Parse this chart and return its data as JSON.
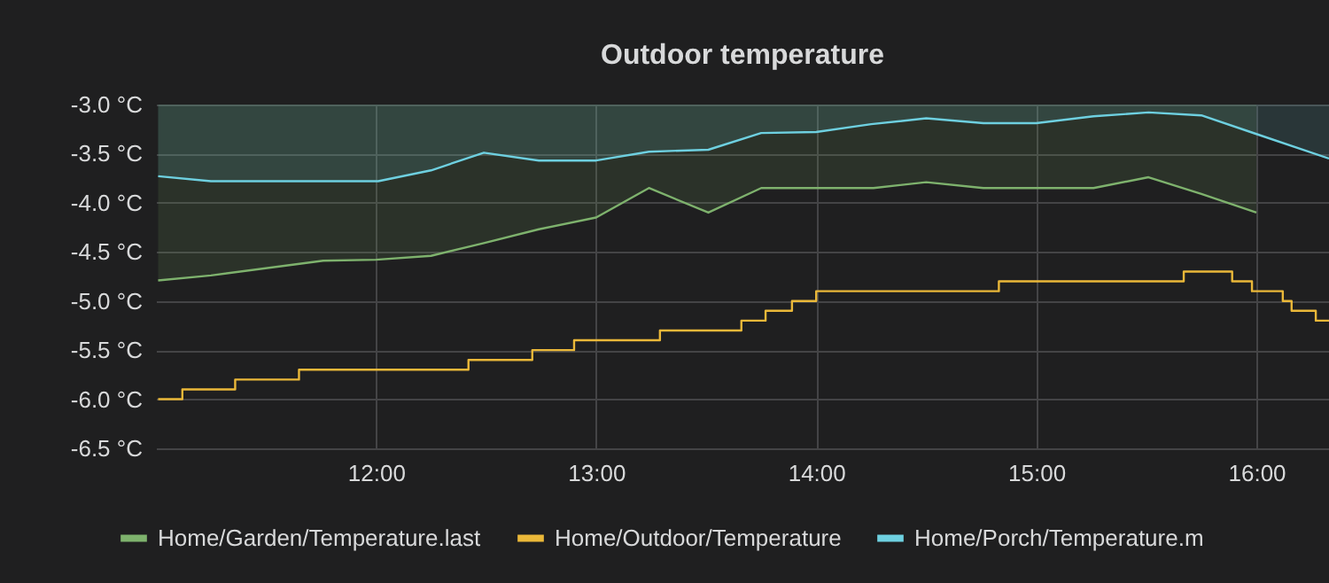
{
  "chart_data": {
    "type": "area",
    "title": "Outdoor temperature",
    "xlim": [
      11.0,
      16.33
    ],
    "xticks": [
      {
        "value": 12,
        "label": "12:00"
      },
      {
        "value": 13,
        "label": "13:00"
      },
      {
        "value": 14,
        "label": "14:00"
      },
      {
        "value": 15,
        "label": "15:00"
      },
      {
        "value": 16,
        "label": "16:00"
      }
    ],
    "ylim": [
      -6.5,
      -3.0
    ],
    "yticks": [
      {
        "value": -6.5,
        "label": "-6.5 °C"
      },
      {
        "value": -6.0,
        "label": "-6.0 °C"
      },
      {
        "value": -5.5,
        "label": "-5.5 °C"
      },
      {
        "value": -5.0,
        "label": "-5.0 °C"
      },
      {
        "value": -4.5,
        "label": "-4.5 °C"
      },
      {
        "value": -4.0,
        "label": "-4.0 °C"
      },
      {
        "value": -3.5,
        "label": "-3.5 °C"
      },
      {
        "value": -3.0,
        "label": "-3.0 °C"
      }
    ],
    "grid": true,
    "legend": "bottom",
    "series": [
      {
        "name": "Home/Garden/Temperature.last",
        "color": "#7eb26d",
        "x": [
          11.01,
          11.25,
          11.76,
          12.0,
          12.25,
          12.49,
          12.74,
          13.0,
          13.24,
          13.51,
          13.75,
          14.0,
          14.26,
          14.5,
          14.76,
          15.0,
          15.26,
          15.51,
          15.75,
          16.0
        ],
        "values": [
          -4.79,
          -4.74,
          -4.59,
          -4.58,
          -4.54,
          -4.41,
          -4.27,
          -4.15,
          -3.85,
          -4.1,
          -3.85,
          -3.85,
          -3.85,
          -3.79,
          -3.85,
          -3.85,
          -3.85,
          -3.74,
          -3.91,
          -4.1
        ]
      },
      {
        "name": "Home/Outdoor/Temperature",
        "color": "#eab839",
        "type": "step",
        "x": [
          11.01,
          11.12,
          11.36,
          11.65,
          12.42,
          12.71,
          12.9,
          13.29,
          13.66,
          13.77,
          13.89,
          14.0,
          14.83,
          15.67,
          15.89,
          15.98,
          16.12,
          16.16,
          16.27,
          16.33
        ],
        "values": [
          -6.0,
          -5.9,
          -5.8,
          -5.7,
          -5.6,
          -5.5,
          -5.4,
          -5.3,
          -5.2,
          -5.1,
          -5.0,
          -4.9,
          -4.8,
          -4.7,
          -4.8,
          -4.9,
          -5.0,
          -5.1,
          -5.2,
          -5.2
        ]
      },
      {
        "name": "Home/Porch/Temperature.m",
        "color": "#6ed0e0",
        "x": [
          11.01,
          11.25,
          12.01,
          12.25,
          12.49,
          12.74,
          13.0,
          13.24,
          13.51,
          13.75,
          14.0,
          14.25,
          14.5,
          14.76,
          15.0,
          15.26,
          15.51,
          15.75,
          16.0,
          16.33
        ],
        "values": [
          -3.73,
          -3.78,
          -3.78,
          -3.67,
          -3.49,
          -3.57,
          -3.57,
          -3.48,
          -3.46,
          -3.29,
          -3.28,
          -3.2,
          -3.14,
          -3.19,
          -3.19,
          -3.12,
          -3.08,
          -3.11,
          -3.3,
          -3.55
        ]
      }
    ]
  }
}
